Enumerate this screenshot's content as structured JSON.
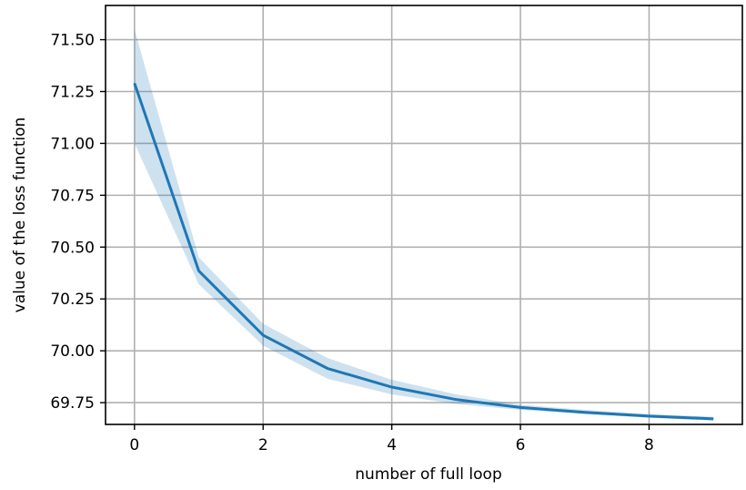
{
  "chart_data": {
    "type": "line",
    "title": "",
    "xlabel": "number of full loop",
    "ylabel": "value of the loss function",
    "xlim": [
      -0.45,
      9.45
    ],
    "ylim": [
      69.645,
      71.665
    ],
    "x_ticks": [
      0,
      2,
      4,
      6,
      8
    ],
    "x_tick_labels": [
      "0",
      "2",
      "4",
      "6",
      "8"
    ],
    "y_ticks": [
      69.75,
      70.0,
      70.25,
      70.5,
      70.75,
      71.0,
      71.25,
      71.5
    ],
    "y_tick_labels": [
      "69.75",
      "70.00",
      "70.25",
      "70.50",
      "70.75",
      "71.00",
      "71.25",
      "71.50"
    ],
    "grid": true,
    "series": [
      {
        "x": [
          0,
          1,
          2,
          3,
          4,
          5,
          6,
          7,
          8,
          9
        ],
        "y": [
          71.29,
          70.385,
          70.075,
          69.915,
          69.825,
          69.765,
          69.727,
          69.703,
          69.685,
          69.672
        ],
        "lower": [
          71.0,
          70.32,
          70.025,
          69.865,
          69.79,
          69.743,
          69.715,
          69.695,
          69.677,
          69.663
        ],
        "upper": [
          71.55,
          70.45,
          70.13,
          69.965,
          69.86,
          69.79,
          69.74,
          69.715,
          69.695,
          69.682
        ],
        "color": "#1f77b4",
        "band_color": "#1f77b4"
      }
    ]
  }
}
